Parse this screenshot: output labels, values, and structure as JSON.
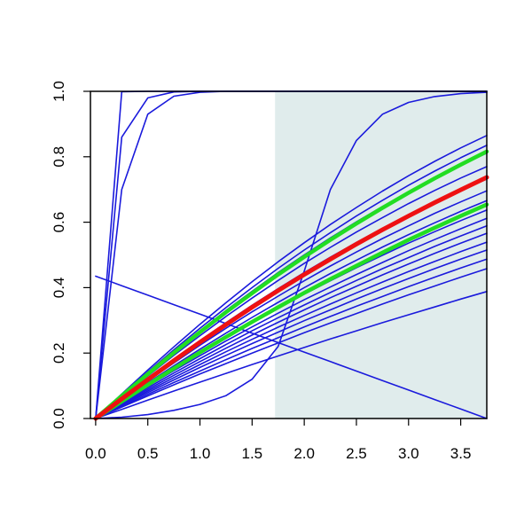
{
  "chart_data": {
    "type": "line",
    "title": "",
    "xlabel": "",
    "ylabel": "",
    "xlim": [
      -0.05,
      3.75
    ],
    "ylim": [
      0,
      1
    ],
    "grid": false,
    "x_ticks": [
      {
        "value": 0.0,
        "label": "0.0"
      },
      {
        "value": 0.5,
        "label": "0.5"
      },
      {
        "value": 1.0,
        "label": "1.0"
      },
      {
        "value": 1.5,
        "label": "1.5"
      },
      {
        "value": 2.0,
        "label": "2.0"
      },
      {
        "value": 2.5,
        "label": "2.5"
      },
      {
        "value": 3.0,
        "label": "3.0"
      },
      {
        "value": 3.5,
        "label": "3.5"
      }
    ],
    "y_ticks": [
      {
        "value": 0.0,
        "label": "0.0"
      },
      {
        "value": 0.2,
        "label": "0.2"
      },
      {
        "value": 0.4,
        "label": "0.4"
      },
      {
        "value": 0.6,
        "label": "0.6"
      },
      {
        "value": 0.8,
        "label": "0.8"
      },
      {
        "value": 1.0,
        "label": "1.0"
      }
    ],
    "shaded_region": {
      "x_from": 1.72,
      "x_to": 3.75,
      "color": "#e0ecec"
    },
    "colors": {
      "ensemble": "#1a1adc",
      "band": "#22dd22",
      "median": "#ee1111"
    },
    "x": [
      0,
      0.25,
      0.5,
      0.75,
      1.0,
      1.25,
      1.5,
      1.75,
      2.0,
      2.25,
      2.5,
      2.75,
      3.0,
      3.25,
      3.5,
      3.75
    ],
    "series": [
      {
        "role": "ensemble",
        "values": [
          0.0,
          0.999,
          1.0,
          1.0,
          1.0,
          1.0,
          1.0,
          1.0,
          1.0,
          1.0,
          1.0,
          1.0,
          1.0,
          1.0,
          1.0,
          1.0
        ]
      },
      {
        "role": "ensemble",
        "values": [
          0.0,
          0.86,
          0.98,
          0.998,
          1.0,
          1.0,
          1.0,
          1.0,
          1.0,
          1.0,
          1.0,
          1.0,
          1.0,
          1.0,
          1.0,
          1.0
        ]
      },
      {
        "role": "ensemble",
        "values": [
          0.0,
          0.7,
          0.93,
          0.985,
          0.997,
          1.0,
          1.0,
          1.0,
          1.0,
          1.0,
          1.0,
          1.0,
          1.0,
          1.0,
          1.0,
          1.0
        ]
      },
      {
        "role": "ensemble",
        "values": [
          0.0,
          0.004,
          0.012,
          0.025,
          0.043,
          0.07,
          0.12,
          0.22,
          0.45,
          0.7,
          0.85,
          0.93,
          0.966,
          0.984,
          0.993,
          0.997
        ]
      },
      {
        "role": "ensemble",
        "values": [
          0.435,
          0.406,
          0.377,
          0.348,
          0.319,
          0.29,
          0.261,
          0.232,
          0.203,
          0.174,
          0.145,
          0.116,
          0.087,
          0.058,
          0.029,
          0.0
        ]
      },
      {
        "role": "ensemble",
        "values": [
          0.0,
          0.075,
          0.148,
          0.219,
          0.288,
          0.354,
          0.418,
          0.479,
          0.537,
          0.593,
          0.645,
          0.695,
          0.742,
          0.786,
          0.827,
          0.865
        ]
      },
      {
        "role": "ensemble",
        "values": [
          0.0,
          0.072,
          0.142,
          0.21,
          0.276,
          0.339,
          0.4,
          0.459,
          0.515,
          0.568,
          0.619,
          0.667,
          0.713,
          0.756,
          0.797,
          0.835
        ]
      },
      {
        "role": "ensemble",
        "values": [
          0.0,
          0.07,
          0.138,
          0.204,
          0.268,
          0.33,
          0.389,
          0.446,
          0.5,
          0.552,
          0.601,
          0.648,
          0.692,
          0.734,
          0.774,
          0.811
        ]
      },
      {
        "role": "ensemble",
        "values": [
          0.0,
          0.066,
          0.13,
          0.193,
          0.253,
          0.312,
          0.368,
          0.422,
          0.474,
          0.523,
          0.57,
          0.614,
          0.657,
          0.697,
          0.735,
          0.77
        ]
      },
      {
        "role": "ensemble",
        "values": [
          0.0,
          0.062,
          0.122,
          0.181,
          0.238,
          0.293,
          0.346,
          0.397,
          0.446,
          0.493,
          0.538,
          0.581,
          0.622,
          0.661,
          0.697,
          0.732
        ]
      },
      {
        "role": "ensemble",
        "values": [
          0.0,
          0.058,
          0.115,
          0.17,
          0.224,
          0.276,
          0.326,
          0.374,
          0.421,
          0.466,
          0.509,
          0.55,
          0.589,
          0.627,
          0.662,
          0.696
        ]
      },
      {
        "role": "ensemble",
        "values": [
          0.0,
          0.055,
          0.109,
          0.161,
          0.212,
          0.261,
          0.309,
          0.355,
          0.4,
          0.443,
          0.484,
          0.524,
          0.562,
          0.598,
          0.633,
          0.666
        ]
      },
      {
        "role": "ensemble",
        "values": [
          0.0,
          0.052,
          0.103,
          0.153,
          0.201,
          0.248,
          0.293,
          0.337,
          0.38,
          0.421,
          0.461,
          0.499,
          0.536,
          0.571,
          0.605,
          0.637
        ]
      },
      {
        "role": "ensemble",
        "values": [
          0.0,
          0.05,
          0.099,
          0.146,
          0.192,
          0.237,
          0.28,
          0.322,
          0.363,
          0.402,
          0.44,
          0.477,
          0.513,
          0.547,
          0.58,
          0.612
        ]
      },
      {
        "role": "ensemble",
        "values": [
          0.0,
          0.047,
          0.094,
          0.139,
          0.183,
          0.226,
          0.268,
          0.308,
          0.347,
          0.385,
          0.422,
          0.458,
          0.492,
          0.526,
          0.558,
          0.589
        ]
      },
      {
        "role": "ensemble",
        "values": [
          0.0,
          0.045,
          0.089,
          0.132,
          0.174,
          0.215,
          0.255,
          0.294,
          0.332,
          0.369,
          0.404,
          0.439,
          0.472,
          0.505,
          0.536,
          0.566
        ]
      },
      {
        "role": "ensemble",
        "values": [
          0.0,
          0.042,
          0.084,
          0.125,
          0.165,
          0.204,
          0.242,
          0.279,
          0.315,
          0.35,
          0.384,
          0.417,
          0.449,
          0.48,
          0.51,
          0.539
        ]
      },
      {
        "role": "ensemble",
        "values": [
          0.0,
          0.04,
          0.079,
          0.118,
          0.156,
          0.193,
          0.229,
          0.264,
          0.299,
          0.332,
          0.365,
          0.397,
          0.428,
          0.458,
          0.487,
          0.515
        ]
      },
      {
        "role": "ensemble",
        "values": [
          0.0,
          0.037,
          0.074,
          0.11,
          0.145,
          0.18,
          0.214,
          0.247,
          0.28,
          0.312,
          0.343,
          0.373,
          0.403,
          0.432,
          0.46,
          0.487
        ]
      },
      {
        "role": "ensemble",
        "values": [
          0.0,
          0.035,
          0.069,
          0.103,
          0.136,
          0.168,
          0.2,
          0.231,
          0.262,
          0.292,
          0.321,
          0.35,
          0.378,
          0.405,
          0.432,
          0.458
        ]
      },
      {
        "role": "ensemble",
        "values": [
          0.0,
          0.028,
          0.056,
          0.084,
          0.111,
          0.138,
          0.165,
          0.191,
          0.217,
          0.243,
          0.268,
          0.293,
          0.317,
          0.341,
          0.365,
          0.388
        ]
      },
      {
        "role": "band",
        "values": [
          0.0,
          0.069,
          0.136,
          0.201,
          0.264,
          0.325,
          0.383,
          0.44,
          0.494,
          0.546,
          0.596,
          0.644,
          0.69,
          0.734,
          0.776,
          0.816
        ]
      },
      {
        "role": "band",
        "values": [
          0.0,
          0.052,
          0.103,
          0.153,
          0.202,
          0.249,
          0.295,
          0.34,
          0.384,
          0.426,
          0.467,
          0.507,
          0.546,
          0.583,
          0.619,
          0.654
        ]
      },
      {
        "role": "median",
        "values": [
          0.0,
          0.06,
          0.119,
          0.177,
          0.233,
          0.287,
          0.34,
          0.391,
          0.44,
          0.487,
          0.533,
          0.577,
          0.619,
          0.66,
          0.699,
          0.737
        ]
      }
    ]
  }
}
